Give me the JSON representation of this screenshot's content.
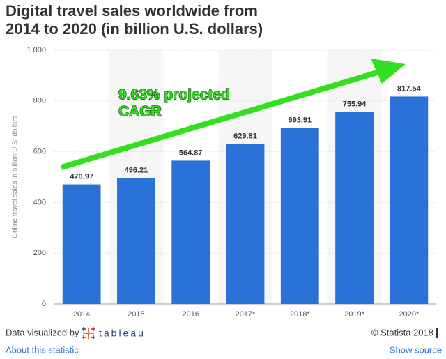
{
  "chart_data": {
    "type": "bar",
    "title": [
      "Digital travel sales worldwide from",
      "2014 to 2020 (in billion U.S. dollars)"
    ],
    "y_label": "Online travel sales in billion U.S. dollars",
    "annotation": [
      "9.63% projected",
      "CAGR"
    ],
    "categories": [
      "2014",
      "2015",
      "2016",
      "2017*",
      "2018*",
      "2019*",
      "2020*"
    ],
    "values": [
      470.97,
      496.21,
      564.87,
      629.81,
      693.91,
      755.94,
      817.54
    ],
    "color": "#2a72d8",
    "ylim": [
      0,
      1000
    ],
    "yticks": [
      0,
      200,
      400,
      600,
      800,
      {
        "value": 1000,
        "label": "1 000"
      }
    ],
    "grid": true
  },
  "footer": {
    "visualized_by": "Data visualized by",
    "tool": "tableau",
    "copyright": "© Statista 2018",
    "about_link": "About this statistic",
    "source_link": "Show source"
  }
}
